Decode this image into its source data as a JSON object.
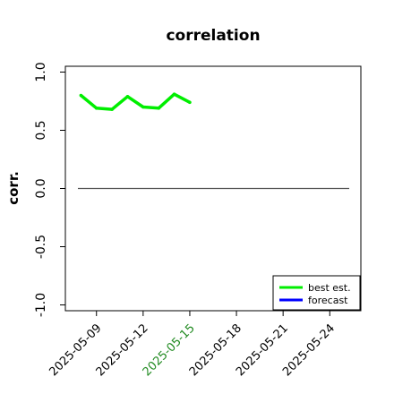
{
  "chart_data": {
    "type": "line",
    "title": "correlation",
    "xlabel": "",
    "ylabel": "corr.",
    "ylim": [
      -1.05,
      1.05
    ],
    "yticks": [
      "-1.0",
      "-0.5",
      "0.0",
      "0.5",
      "1.0"
    ],
    "ytick_values": [
      -1.0,
      -0.5,
      0.0,
      0.5,
      1.0
    ],
    "x_dates": [
      "2025-05-08",
      "2025-05-09",
      "2025-05-10",
      "2025-05-11",
      "2025-05-12",
      "2025-05-13",
      "2025-05-14",
      "2025-05-15"
    ],
    "xlim": [
      "2025-05-07",
      "2025-05-26"
    ],
    "xticks": [
      "2025-05-09",
      "2025-05-12",
      "2025-05-15",
      "2025-05-18",
      "2025-05-21",
      "2025-05-24"
    ],
    "highlight_xtick": "2025-05-15",
    "series": [
      {
        "name": "best est.",
        "color": "#00ee00",
        "values": [
          0.8,
          0.69,
          0.68,
          0.79,
          0.7,
          0.69,
          0.81,
          0.74
        ]
      },
      {
        "name": "forecast",
        "color": "#0000ff",
        "values": []
      }
    ],
    "reference_line": 0.0,
    "legend_position": "bottom-right",
    "colors": {
      "tick_label": "#000000",
      "highlight_tick_label": "#228b22",
      "zero_line": "#555555"
    }
  }
}
